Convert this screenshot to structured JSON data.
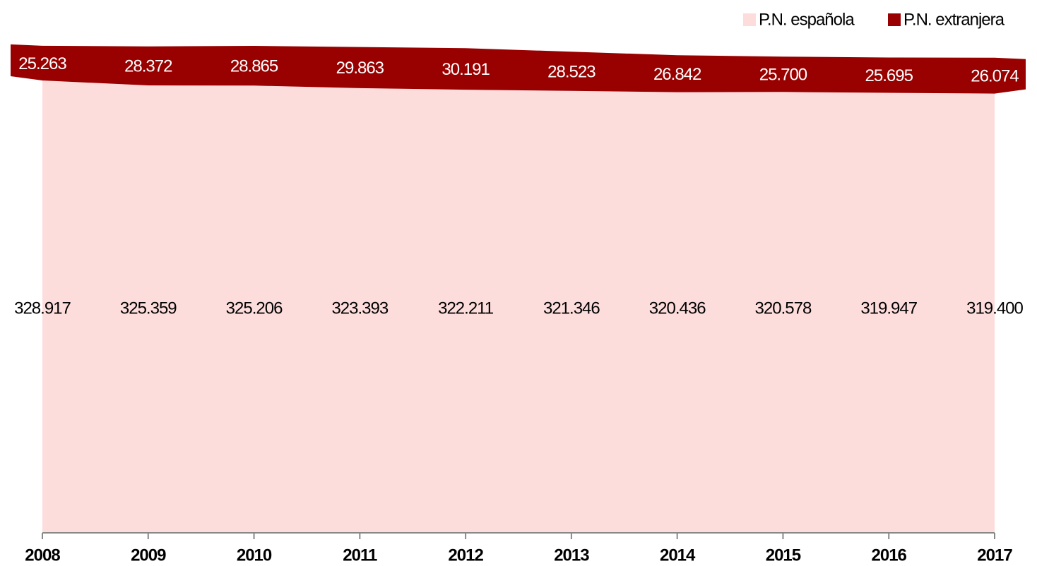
{
  "chart_data": {
    "type": "stacked_area",
    "categories": [
      "2008",
      "2009",
      "2010",
      "2011",
      "2012",
      "2013",
      "2014",
      "2015",
      "2016",
      "2017"
    ],
    "series": [
      {
        "name": "P.N. española",
        "color": "#fddcdc",
        "values": [
          328917,
          325359,
          325206,
          323393,
          322211,
          321346,
          320436,
          320578,
          319947,
          319400
        ],
        "value_labels": [
          "328.917",
          "325.359",
          "325.206",
          "323.393",
          "322.211",
          "321.346",
          "320.436",
          "320.578",
          "319.947",
          "319.400"
        ]
      },
      {
        "name": "P.N. extranjera",
        "color": "#990000",
        "values": [
          25263,
          28372,
          28865,
          29863,
          30191,
          28523,
          26842,
          25700,
          25695,
          26074
        ],
        "value_labels": [
          "25.263",
          "28.372",
          "28.865",
          "29.863",
          "30.191",
          "28.523",
          "26.842",
          "25.700",
          "25.695",
          "26.074"
        ]
      }
    ],
    "ylim": [
      0,
      370000
    ],
    "legend": "top-right"
  }
}
